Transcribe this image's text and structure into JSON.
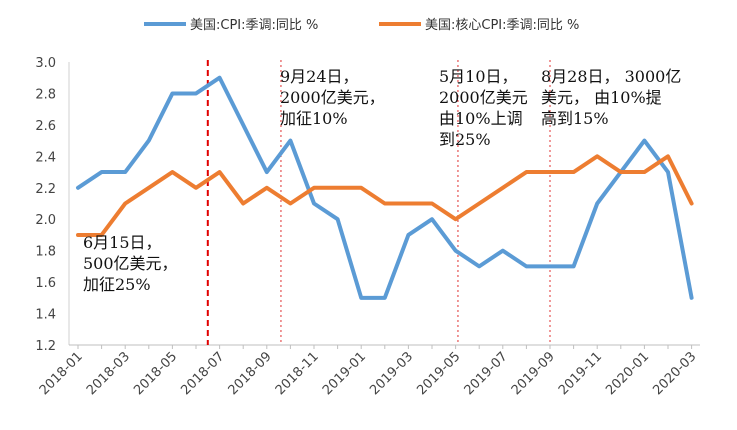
{
  "chart_data": {
    "type": "line",
    "x": [
      "2018-01",
      "2018-02",
      "2018-03",
      "2018-04",
      "2018-05",
      "2018-06",
      "2018-07",
      "2018-08",
      "2018-09",
      "2018-10",
      "2018-11",
      "2018-12",
      "2019-01",
      "2019-02",
      "2019-03",
      "2019-04",
      "2019-05",
      "2019-06",
      "2019-07",
      "2019-08",
      "2019-09",
      "2019-10",
      "2019-11",
      "2019-12",
      "2020-01",
      "2020-02",
      "2020-03"
    ],
    "x_tick_labels": [
      "2018-01",
      "2018-03",
      "2018-05",
      "2018-07",
      "2018-09",
      "2018-11",
      "2019-01",
      "2019-03",
      "2019-05",
      "2019-07",
      "2019-09",
      "2019-11",
      "2020-01",
      "2020-03"
    ],
    "ylim": [
      1.2,
      3.0
    ],
    "yticks": [
      "1.2",
      "1.4",
      "1.6",
      "1.8",
      "2.0",
      "2.2",
      "2.4",
      "2.6",
      "2.8",
      "3.0"
    ],
    "grid": false,
    "legend_position": "top",
    "series": [
      {
        "name": "美国:CPI:季调:同比 %",
        "color": "#5B9BD5",
        "values": [
          2.2,
          2.3,
          2.3,
          2.5,
          2.8,
          2.8,
          2.9,
          2.6,
          2.3,
          2.5,
          2.1,
          2.0,
          1.5,
          1.5,
          1.9,
          2.0,
          1.8,
          1.7,
          1.8,
          1.7,
          1.7,
          1.7,
          2.1,
          2.3,
          2.5,
          2.3,
          1.5
        ]
      },
      {
        "name": "美国:核心CPI:季调:同比 %",
        "color": "#ED7D31",
        "values": [
          1.9,
          1.9,
          2.1,
          2.2,
          2.3,
          2.2,
          2.3,
          2.1,
          2.2,
          2.1,
          2.2,
          2.2,
          2.2,
          2.1,
          2.1,
          2.1,
          2.0,
          2.1,
          2.2,
          2.3,
          2.3,
          2.3,
          2.4,
          2.3,
          2.3,
          2.4,
          2.1
        ]
      }
    ],
    "annotations": [
      {
        "x_value": 5.5,
        "style": "thick-dashed",
        "color": "#E00000",
        "text": [
          "6月15日，",
          "500亿美元，",
          "加征25%"
        ]
      },
      {
        "x_value": 8.6,
        "style": "thin-dotted",
        "color": "#E03030",
        "text": [
          "9月24日，",
          "2000亿美元，",
          "加征10%"
        ]
      },
      {
        "x_value": 16.1,
        "style": "thin-dotted",
        "color": "#E03030",
        "text": [
          "5月10日，",
          "2000亿美元",
          "由10%上调",
          "到25%"
        ]
      },
      {
        "x_value": 20.0,
        "style": "thin-dotted",
        "color": "#E03030",
        "text": [
          "8月28日， 3000亿",
          "美元， 由10%提",
          "高到15%"
        ]
      }
    ]
  }
}
